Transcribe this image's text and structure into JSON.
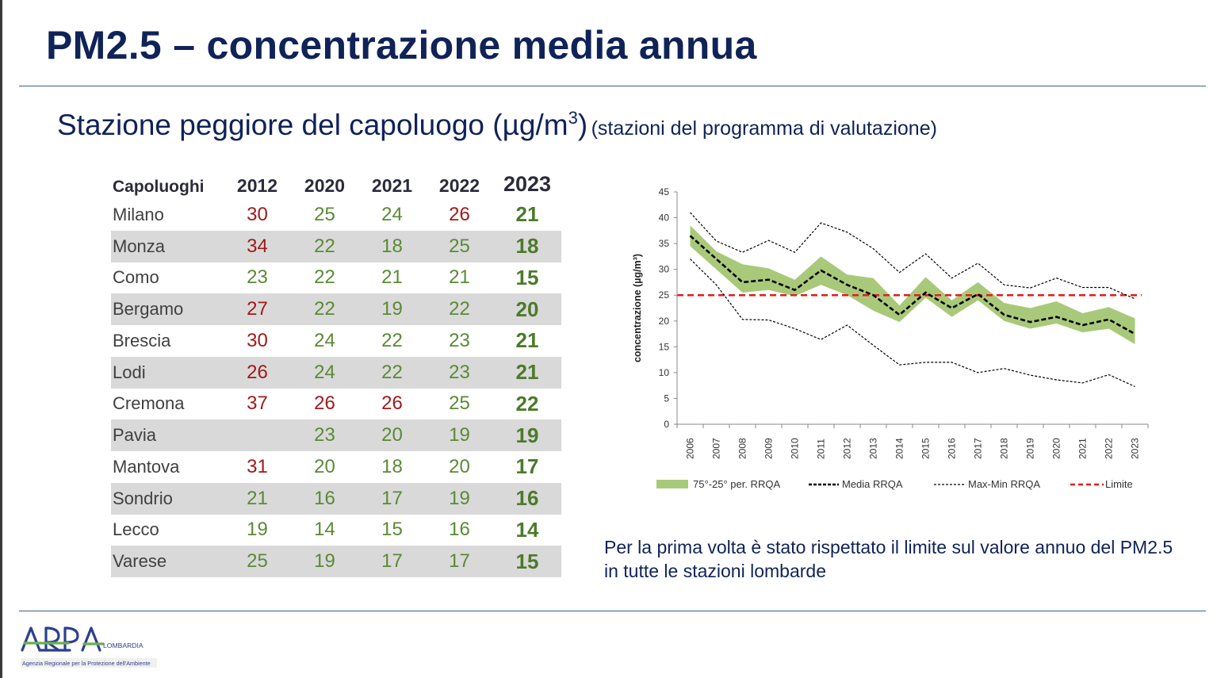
{
  "title": "PM2.5 – concentrazione media annua",
  "subtitle": {
    "main": "Stazione peggiore del capoluogo (µg/m",
    "sup": "3",
    "close": ")",
    "note": "(stazioni del programma di valutazione)"
  },
  "table": {
    "headers": [
      "Capoluoghi",
      "2012",
      "2020",
      "2021",
      "2022",
      "2023"
    ],
    "rows": [
      {
        "name": "Milano",
        "v": [
          "30",
          "25",
          "24",
          "26",
          "21"
        ],
        "c": [
          "red",
          "green",
          "green",
          "red",
          "green"
        ]
      },
      {
        "name": "Monza",
        "v": [
          "34",
          "22",
          "18",
          "25",
          "18"
        ],
        "c": [
          "red",
          "green",
          "green",
          "green",
          "green"
        ]
      },
      {
        "name": "Como",
        "v": [
          "23",
          "22",
          "21",
          "21",
          "15"
        ],
        "c": [
          "green",
          "green",
          "green",
          "green",
          "green"
        ]
      },
      {
        "name": "Bergamo",
        "v": [
          "27",
          "22",
          "19",
          "22",
          "20"
        ],
        "c": [
          "red",
          "green",
          "green",
          "green",
          "green"
        ]
      },
      {
        "name": "Brescia",
        "v": [
          "30",
          "24",
          "22",
          "23",
          "21"
        ],
        "c": [
          "red",
          "green",
          "green",
          "green",
          "green"
        ]
      },
      {
        "name": "Lodi",
        "v": [
          "26",
          "24",
          "22",
          "23",
          "21"
        ],
        "c": [
          "red",
          "green",
          "green",
          "green",
          "green"
        ]
      },
      {
        "name": "Cremona",
        "v": [
          "37",
          "26",
          "26",
          "25",
          "22"
        ],
        "c": [
          "red",
          "red",
          "red",
          "green",
          "green"
        ]
      },
      {
        "name": "Pavia",
        "v": [
          "",
          "23",
          "20",
          "19",
          "19"
        ],
        "c": [
          "green",
          "green",
          "green",
          "green",
          "green"
        ]
      },
      {
        "name": "Mantova",
        "v": [
          "31",
          "20",
          "18",
          "20",
          "17"
        ],
        "c": [
          "red",
          "green",
          "green",
          "green",
          "green"
        ]
      },
      {
        "name": "Sondrio",
        "v": [
          "21",
          "16",
          "17",
          "19",
          "16"
        ],
        "c": [
          "green",
          "green",
          "green",
          "green",
          "green"
        ]
      },
      {
        "name": "Lecco",
        "v": [
          "19",
          "14",
          "15",
          "16",
          "14"
        ],
        "c": [
          "green",
          "green",
          "green",
          "green",
          "green"
        ]
      },
      {
        "name": "Varese",
        "v": [
          "25",
          "19",
          "17",
          "17",
          "15"
        ],
        "c": [
          "green",
          "green",
          "green",
          "green",
          "green"
        ]
      }
    ]
  },
  "chart_data": {
    "type": "line",
    "ylabel": "concentrazione (µg/m³)",
    "ylim": [
      0,
      45
    ],
    "yticks": [
      0,
      5,
      10,
      15,
      20,
      25,
      30,
      35,
      40,
      45
    ],
    "x": [
      "2006",
      "2007",
      "2008",
      "2009",
      "2010",
      "2011",
      "2012",
      "2013",
      "2014",
      "2015",
      "2016",
      "2017",
      "2018",
      "2019",
      "2020",
      "2021",
      "2022",
      "2023"
    ],
    "series": [
      {
        "name": "75°-25° per. RRQA",
        "kind": "band",
        "color": "#a9c97a",
        "upper": [
          38.5,
          33.5,
          31.0,
          30.2,
          28.0,
          32.5,
          29.0,
          28.3,
          23.0,
          28.5,
          24.0,
          27.5,
          23.5,
          22.5,
          23.8,
          21.5,
          22.7,
          20.5
        ],
        "lower": [
          34.5,
          30.0,
          25.5,
          26.0,
          24.8,
          27.0,
          25.0,
          22.0,
          19.8,
          24.5,
          20.8,
          24.0,
          20.0,
          18.5,
          19.5,
          17.8,
          18.5,
          15.5
        ]
      },
      {
        "name": "Media RRQA",
        "kind": "dashed",
        "color": "#000000",
        "values": [
          36.5,
          32.0,
          27.5,
          28.0,
          26.0,
          29.8,
          27.0,
          25.0,
          21.2,
          25.5,
          22.5,
          25.2,
          21.2,
          19.8,
          20.8,
          19.2,
          20.3,
          17.5
        ]
      },
      {
        "name": "Max-Min RRQA",
        "kind": "dotted",
        "color": "#000000",
        "max": [
          41.0,
          35.5,
          33.3,
          35.6,
          33.3,
          39.0,
          37.2,
          34.0,
          29.4,
          33.0,
          28.3,
          31.2,
          27.0,
          26.4,
          28.3,
          26.5,
          26.5,
          24.3
        ],
        "min": [
          32.0,
          27.0,
          20.3,
          20.2,
          18.5,
          16.4,
          19.2,
          15.3,
          11.5,
          12.0,
          12.0,
          10.0,
          10.8,
          9.5,
          8.6,
          8.0,
          9.6,
          7.3
        ]
      },
      {
        "name": "Limite",
        "kind": "limit",
        "color": "#e31b1b",
        "value": 25
      }
    ]
  },
  "note": "Per la prima volta è stato rispettato il limite sul valore annuo del PM2.5 in tutte le stazioni lombarde",
  "logo": {
    "name": "ARPA",
    "region": "LOMBARDIA",
    "tagline": "Agenzia Regionale per la Protezione dell'Ambiente"
  }
}
